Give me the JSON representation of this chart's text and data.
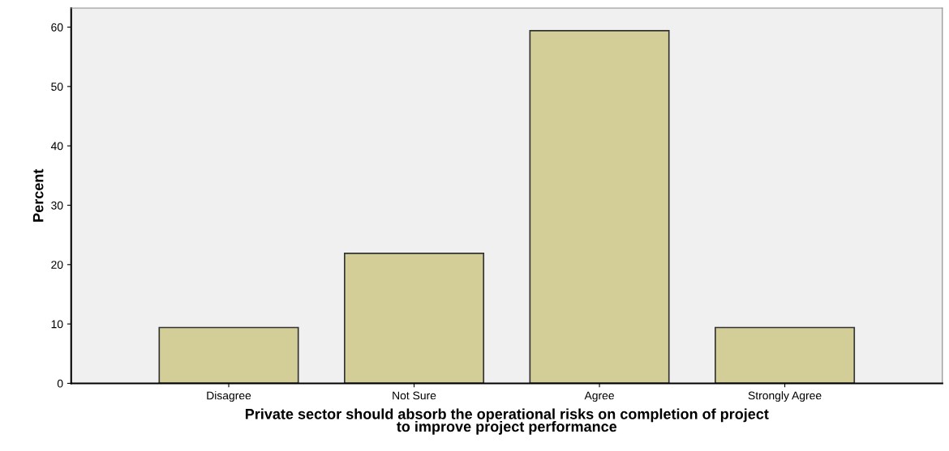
{
  "chart_data": {
    "type": "bar",
    "xlabel": "Private sector should absorb the operational risks on completion of project\nto improve project performance",
    "ylabel": "Percent",
    "categories": [
      "Disagree",
      "Not Sure",
      "Agree",
      "Strongly Agree"
    ],
    "values": [
      9.4,
      21.9,
      59.4,
      9.4
    ],
    "color": "#d3ce97",
    "ylim": [
      0,
      63.2
    ],
    "yticks": [
      0,
      10,
      20,
      30,
      40,
      50,
      60
    ],
    "grid": false
  }
}
